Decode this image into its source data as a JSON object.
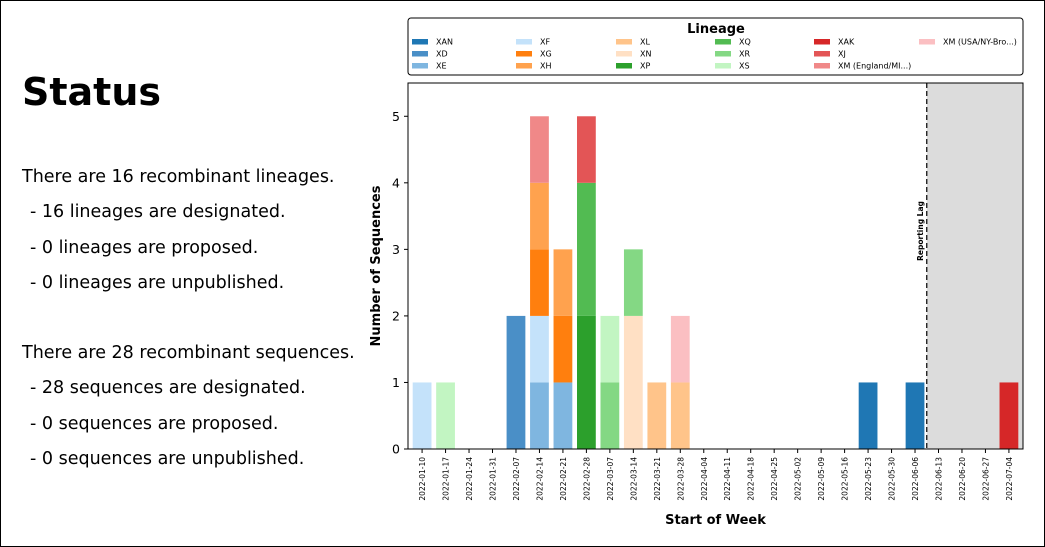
{
  "status": {
    "title": "Status",
    "lineages_summary": "There are 16 recombinant lineages.",
    "lineages_designated": "- 16 lineages are designated.",
    "lineages_proposed": "- 0 lineages are proposed.",
    "lineages_unpublished": "- 0 lineages are unpublished.",
    "sequences_summary": "There are 28 recombinant sequences.",
    "sequences_designated": "- 28 sequences are designated.",
    "sequences_proposed": "- 0 sequences are proposed.",
    "sequences_unpublished": "- 0 sequences are unpublished."
  },
  "chart_data": {
    "type": "bar",
    "stacked": true,
    "title": "",
    "xlabel": "Start of Week",
    "ylabel": "Number of Sequences",
    "ylim": [
      0,
      5.5
    ],
    "yticks": [
      0,
      1,
      2,
      3,
      4,
      5
    ],
    "legend_title": "Lineage",
    "legend_position": "top",
    "reporting_lag": {
      "label": "Reporting Lag",
      "start_after": "2022-06-06",
      "shade_color": "#dcdcdc"
    },
    "categories": [
      "2022-01-10",
      "2022-01-17",
      "2022-01-24",
      "2022-01-31",
      "2022-02-07",
      "2022-02-14",
      "2022-02-21",
      "2022-02-28",
      "2022-03-07",
      "2022-03-14",
      "2022-03-21",
      "2022-03-28",
      "2022-04-04",
      "2022-04-11",
      "2022-04-18",
      "2022-04-25",
      "2022-05-02",
      "2022-05-09",
      "2022-05-16",
      "2022-05-23",
      "2022-05-30",
      "2022-06-06",
      "2022-06-13",
      "2022-06-20",
      "2022-06-27",
      "2022-07-04"
    ],
    "series": [
      {
        "name": "XAN",
        "color": "#1f77b4",
        "values": [
          0,
          0,
          0,
          0,
          0,
          0,
          0,
          0,
          0,
          0,
          0,
          0,
          0,
          0,
          0,
          0,
          0,
          0,
          0,
          1,
          0,
          1,
          0,
          0,
          0,
          0
        ]
      },
      {
        "name": "XD",
        "color": "#4a8fc7",
        "values": [
          0,
          0,
          0,
          0,
          2,
          0,
          0,
          0,
          0,
          0,
          0,
          0,
          0,
          0,
          0,
          0,
          0,
          0,
          0,
          0,
          0,
          0,
          0,
          0,
          0,
          0
        ]
      },
      {
        "name": "XE",
        "color": "#7fb6e0",
        "values": [
          0,
          0,
          0,
          0,
          0,
          1,
          1,
          0,
          0,
          0,
          0,
          0,
          0,
          0,
          0,
          0,
          0,
          0,
          0,
          0,
          0,
          0,
          0,
          0,
          0,
          0
        ]
      },
      {
        "name": "XF",
        "color": "#c4e2fa",
        "values": [
          1,
          0,
          0,
          0,
          0,
          1,
          0,
          0,
          0,
          0,
          0,
          0,
          0,
          0,
          0,
          0,
          0,
          0,
          0,
          0,
          0,
          0,
          0,
          0,
          0,
          0
        ]
      },
      {
        "name": "XG",
        "color": "#ff7f0e",
        "values": [
          0,
          0,
          0,
          0,
          0,
          1,
          1,
          0,
          0,
          0,
          0,
          0,
          0,
          0,
          0,
          0,
          0,
          0,
          0,
          0,
          0,
          0,
          0,
          0,
          0,
          0
        ]
      },
      {
        "name": "XH",
        "color": "#ffa24e",
        "values": [
          0,
          0,
          0,
          0,
          0,
          1,
          1,
          0,
          0,
          0,
          0,
          0,
          0,
          0,
          0,
          0,
          0,
          0,
          0,
          0,
          0,
          0,
          0,
          0,
          0,
          0
        ]
      },
      {
        "name": "XL",
        "color": "#ffc48a",
        "values": [
          0,
          0,
          0,
          0,
          0,
          0,
          0,
          0,
          0,
          0,
          1,
          1,
          0,
          0,
          0,
          0,
          0,
          0,
          0,
          0,
          0,
          0,
          0,
          0,
          0,
          0
        ]
      },
      {
        "name": "XN",
        "color": "#ffe0c4",
        "values": [
          0,
          0,
          0,
          0,
          0,
          0,
          0,
          0,
          0,
          2,
          0,
          0,
          0,
          0,
          0,
          0,
          0,
          0,
          0,
          0,
          0,
          0,
          0,
          0,
          0,
          0
        ]
      },
      {
        "name": "XP",
        "color": "#2ca02c",
        "values": [
          0,
          0,
          0,
          0,
          0,
          0,
          0,
          2,
          0,
          0,
          0,
          0,
          0,
          0,
          0,
          0,
          0,
          0,
          0,
          0,
          0,
          0,
          0,
          0,
          0,
          0
        ]
      },
      {
        "name": "XQ",
        "color": "#52bb52",
        "values": [
          0,
          0,
          0,
          0,
          0,
          0,
          0,
          2,
          0,
          0,
          0,
          0,
          0,
          0,
          0,
          0,
          0,
          0,
          0,
          0,
          0,
          0,
          0,
          0,
          0,
          0
        ]
      },
      {
        "name": "XR",
        "color": "#84d884",
        "values": [
          0,
          0,
          0,
          0,
          0,
          0,
          0,
          0,
          1,
          1,
          0,
          0,
          0,
          0,
          0,
          0,
          0,
          0,
          0,
          0,
          0,
          0,
          0,
          0,
          0,
          0
        ]
      },
      {
        "name": "XS",
        "color": "#c2f5c2",
        "values": [
          0,
          1,
          0,
          0,
          0,
          0,
          0,
          0,
          1,
          0,
          0,
          0,
          0,
          0,
          0,
          0,
          0,
          0,
          0,
          0,
          0,
          0,
          0,
          0,
          0,
          0
        ]
      },
      {
        "name": "XAK",
        "color": "#d62728",
        "values": [
          0,
          0,
          0,
          0,
          0,
          0,
          0,
          0,
          0,
          0,
          0,
          0,
          0,
          0,
          0,
          0,
          0,
          0,
          0,
          0,
          0,
          0,
          0,
          0,
          0,
          1
        ]
      },
      {
        "name": "XJ",
        "color": "#e35556",
        "values": [
          0,
          0,
          0,
          0,
          0,
          0,
          0,
          1,
          0,
          0,
          0,
          0,
          0,
          0,
          0,
          0,
          0,
          0,
          0,
          0,
          0,
          0,
          0,
          0,
          0,
          0
        ]
      },
      {
        "name": "XM (England/MI...)",
        "color": "#f08888",
        "values": [
          0,
          0,
          0,
          0,
          0,
          1,
          0,
          0,
          0,
          0,
          0,
          0,
          0,
          0,
          0,
          0,
          0,
          0,
          0,
          0,
          0,
          0,
          0,
          0,
          0,
          0
        ]
      },
      {
        "name": "XM (USA/NY-Bro...)",
        "color": "#fbbfc2",
        "values": [
          0,
          0,
          0,
          0,
          0,
          0,
          0,
          0,
          0,
          0,
          0,
          1,
          0,
          0,
          0,
          0,
          0,
          0,
          0,
          0,
          0,
          0,
          0,
          0,
          0,
          0
        ]
      }
    ]
  }
}
